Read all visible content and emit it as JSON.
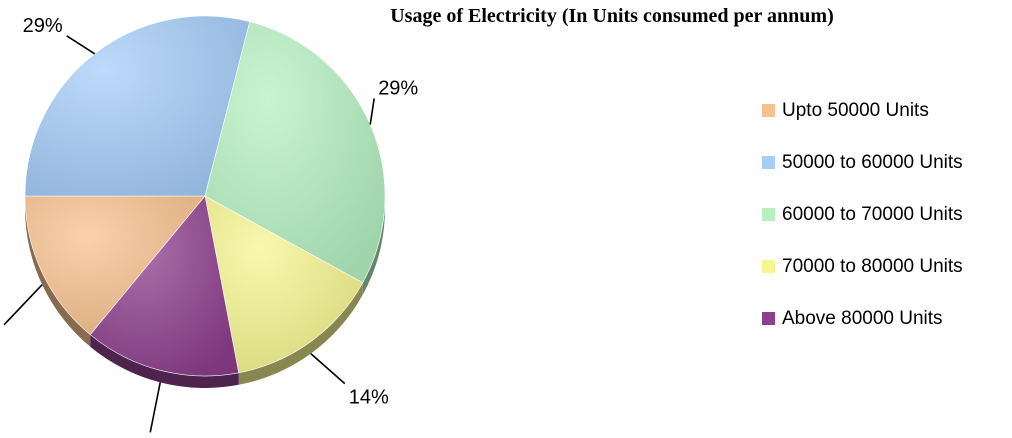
{
  "chart_data": {
    "type": "pie",
    "title": "Usage of Electricity (In Units consumed per annum)",
    "categories": [
      "Upto 50000 Units",
      "50000 to 60000 Units",
      "60000 to 70000 Units",
      "70000 to 80000 Units",
      "Above 80000 Units"
    ],
    "values": [
      14,
      29,
      29,
      14,
      14
    ],
    "data_labels": [
      "14%",
      "29%",
      "29%",
      "14%",
      "14%"
    ],
    "colors": [
      "#F8C28F",
      "#A6CEF9",
      "#B6F1C2",
      "#F7F590",
      "#8E3F8D"
    ],
    "legend_position": "right",
    "style": "3d-pie"
  }
}
